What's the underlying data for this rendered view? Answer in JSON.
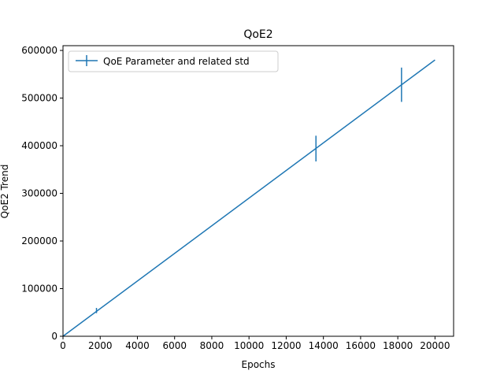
{
  "chart_data": {
    "type": "line",
    "title": "QoE2",
    "xlabel": "Epochs",
    "ylabel": "QoE2 Trend",
    "xlim": [
      0,
      21000
    ],
    "ylim": [
      0,
      610000
    ],
    "xticks": [
      0,
      2000,
      4000,
      6000,
      8000,
      10000,
      12000,
      14000,
      16000,
      18000,
      20000
    ],
    "xtick_labels": [
      "0",
      "2000",
      "4000",
      "6000",
      "8000",
      "10000",
      "12000",
      "14000",
      "16000",
      "18000",
      "20000"
    ],
    "yticks": [
      0,
      100000,
      200000,
      300000,
      400000,
      500000,
      600000
    ],
    "ytick_labels": [
      "0",
      "100000",
      "200000",
      "300000",
      "400000",
      "500000",
      "600000"
    ],
    "grid": false,
    "legend_position": "top-left",
    "color": "#1f77b4",
    "series": [
      {
        "name": "QoE Parameter and related std",
        "x": [
          0,
          20000
        ],
        "y": [
          0,
          580000
        ],
        "error_bars": [
          {
            "x": 1800,
            "y": 54000,
            "std": 5500
          },
          {
            "x": 13600,
            "y": 394000,
            "std": 27000
          },
          {
            "x": 18200,
            "y": 528000,
            "std": 36000
          }
        ]
      }
    ]
  }
}
